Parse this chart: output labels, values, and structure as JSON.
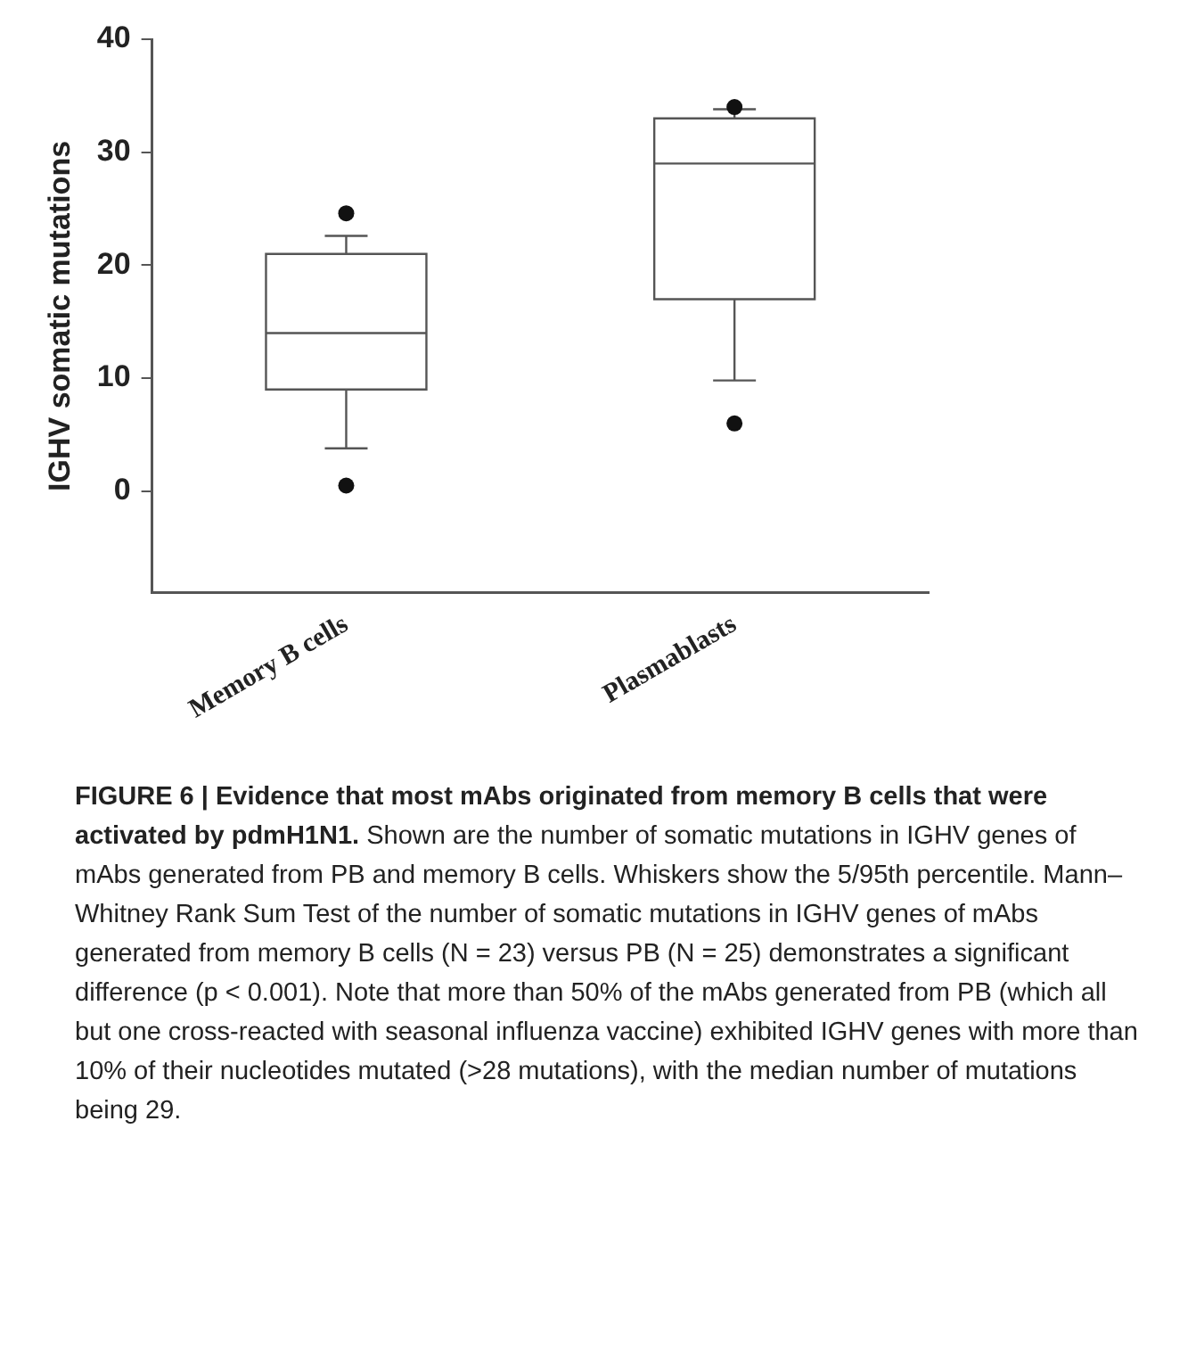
{
  "chart_data": {
    "type": "box",
    "title": "FIGURE 6 | Evidence that most mAbs originated from memory B cells that were activated by pdmH1N1.",
    "ylabel": "IGHV somatic mutations",
    "categories": [
      "Memory B cells",
      "Plasmablasts"
    ],
    "boxes": [
      {
        "low": 3.8,
        "q1": 9,
        "median": 14,
        "q3": 21,
        "high": 22.6,
        "outliers": [
          0.5,
          24.6
        ]
      },
      {
        "low": 9.8,
        "q1": 17,
        "median": 29,
        "q3": 33,
        "high": 33.8,
        "outliers": [
          6,
          34
        ]
      }
    ],
    "ylim": [
      -9,
      40
    ],
    "yticks": [
      0,
      10,
      20,
      30,
      40
    ],
    "grid": false,
    "legend": false,
    "annotations": [
      "Shown are the number of somatic mutations in IGHV genes of mAbs generated from PB and memory B cells. Whiskers show the 5/95th percentile. Mann–Whitney Rank Sum Test of the number of somatic mutations in IGHV genes of mAbs generated from memory B cells (N = 23) versus PB (N = 25) demonstrates a significant difference (p < 0.001). Note that more than 50% of the mAbs generated from PB (which all but one cross-reacted with seasonal influenza vaccine) exhibited IGHV genes with more than 10% of their nucleotides mutated (>28 mutations), with the median number of mutations being 29."
    ]
  }
}
